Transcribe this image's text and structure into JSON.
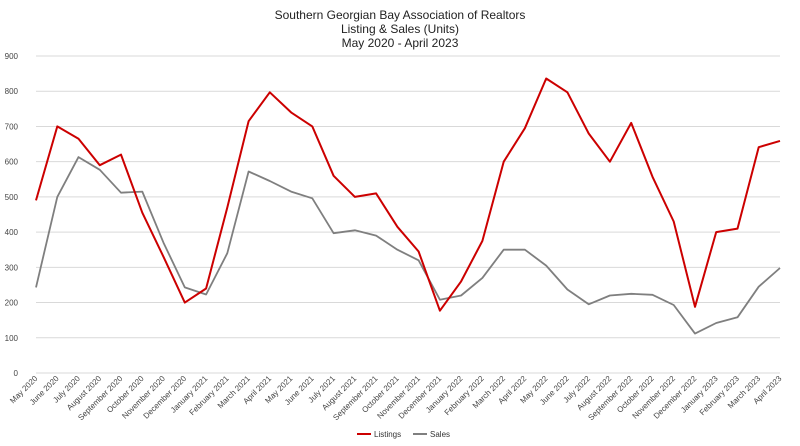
{
  "chart_data": {
    "type": "line",
    "title_lines": [
      "Southern Georgian Bay Association of Realtors",
      "Listing & Sales (Units)",
      "May 2020 - April 2023"
    ],
    "categories": [
      "May 2020",
      "June 2020",
      "July 2020",
      "August 2020",
      "September 2020",
      "October 2020",
      "November 2020",
      "December 2020",
      "January 2021",
      "February 2021",
      "March 2021",
      "April 2021",
      "May 2021",
      "June 2021",
      "July 2021",
      "August 2021",
      "September 2021",
      "October 2021",
      "November 2021",
      "December 2021",
      "January 2022",
      "February 2022",
      "March 2022",
      "April 2022",
      "May 2022",
      "June 2022",
      "July 2022",
      "August 2022",
      "September 2022",
      "October 2022",
      "November 2022",
      "December 2022",
      "January 2023",
      "February 2023",
      "March 2023",
      "April 2023"
    ],
    "series": [
      {
        "name": "Listings",
        "color": "#cc0000",
        "values": [
          490,
          700,
          665,
          590,
          620,
          455,
          330,
          200,
          240,
          470,
          715,
          797,
          740,
          700,
          560,
          500,
          510,
          415,
          345,
          177,
          260,
          375,
          600,
          695,
          836,
          797,
          680,
          600,
          710,
          557,
          430,
          188,
          400,
          410,
          641,
          659
        ]
      },
      {
        "name": "Sales",
        "color": "#7f7f7f",
        "values": [
          243,
          500,
          613,
          577,
          512,
          515,
          370,
          243,
          223,
          340,
          572,
          545,
          515,
          496,
          397,
          405,
          390,
          350,
          320,
          208,
          220,
          270,
          350,
          350,
          305,
          237,
          195,
          220,
          225,
          222,
          193,
          112,
          142,
          158,
          245,
          298
        ]
      }
    ],
    "ylim": [
      0,
      900
    ],
    "yticks": [
      0,
      100,
      200,
      300,
      400,
      500,
      600,
      700,
      800,
      900
    ],
    "grid": true,
    "legend_position": "bottom-center"
  }
}
